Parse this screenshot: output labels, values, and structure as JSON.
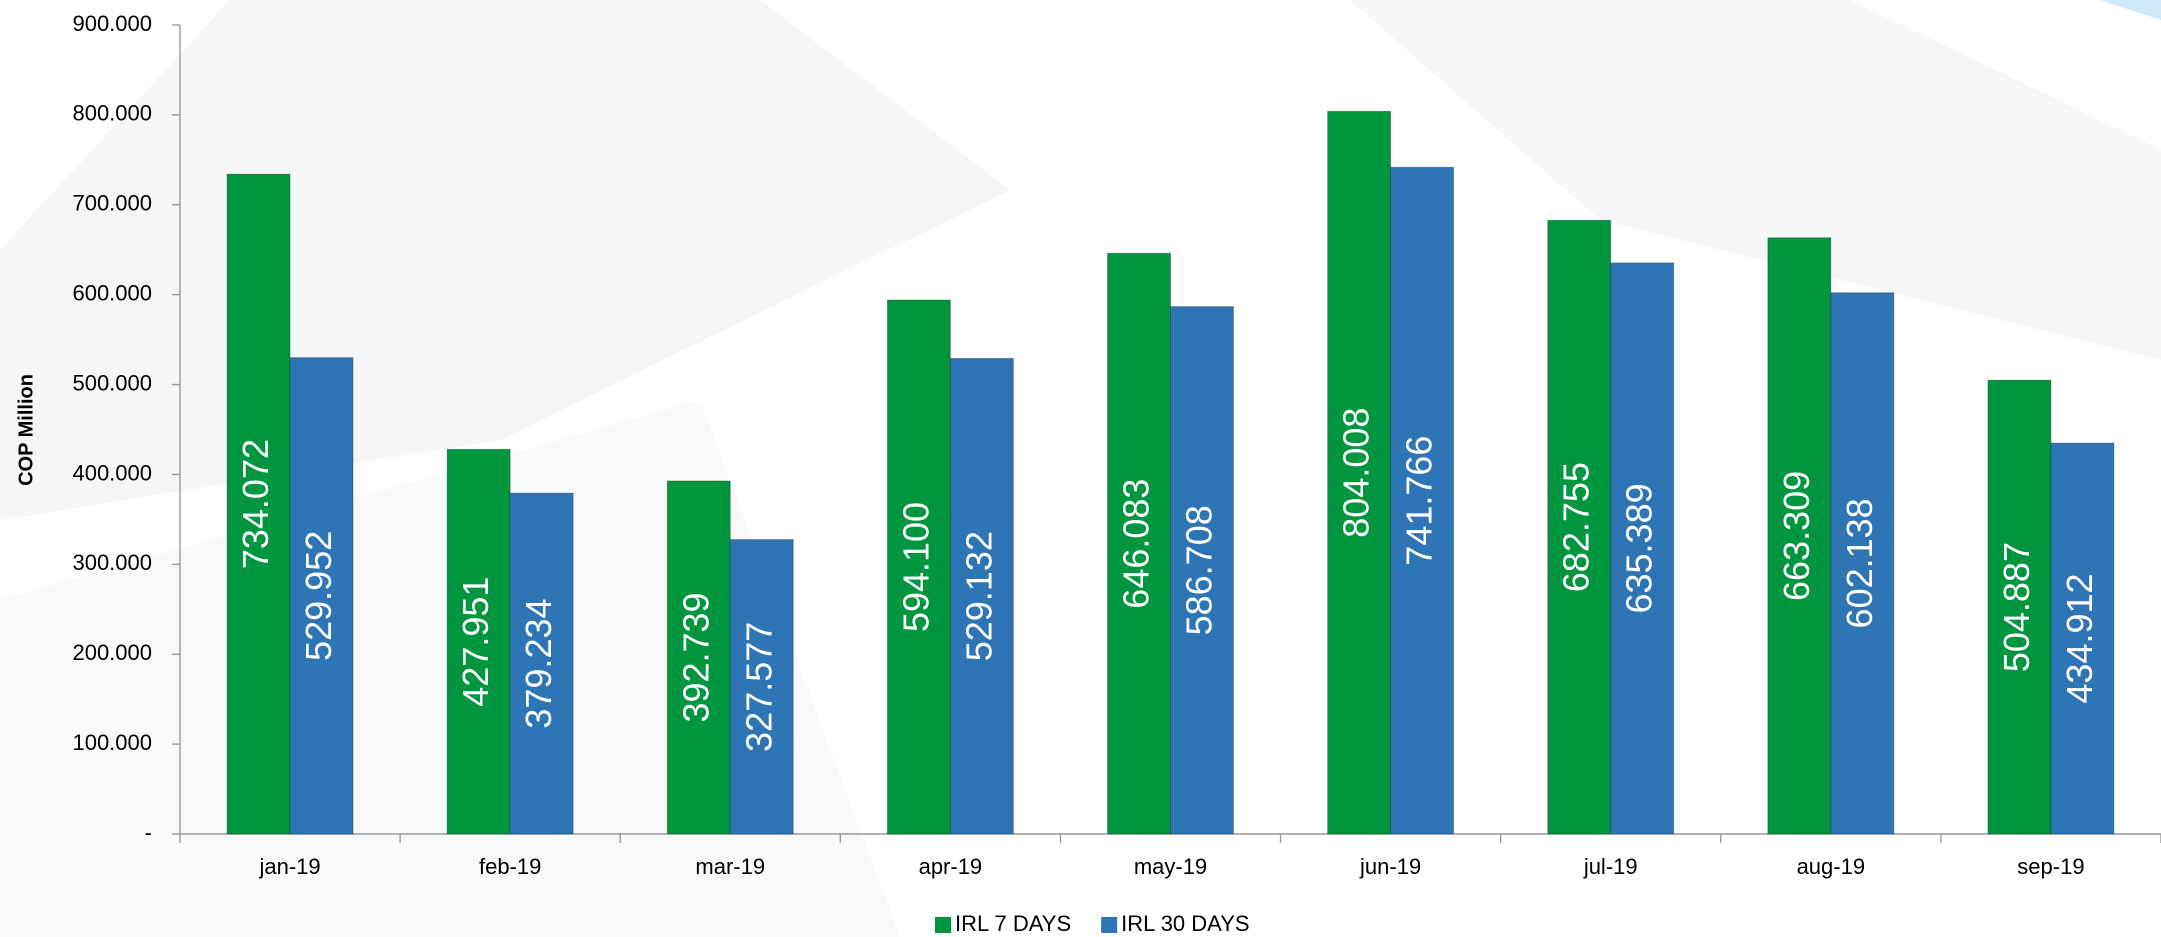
{
  "chart_data": {
    "type": "bar",
    "y_label": "COP Million",
    "categories": [
      "jan-19",
      "feb-19",
      "mar-19",
      "apr-19",
      "may-19",
      "jun-19",
      "jul-19",
      "aug-19",
      "sep-19"
    ],
    "series": [
      {
        "name": "IRL 7 DAYS",
        "color": "#00953f",
        "values": [
          734072,
          427951,
          392739,
          594100,
          646083,
          804008,
          682755,
          663309,
          504887
        ],
        "value_labels": [
          "734.072",
          "427.951",
          "392.739",
          "594.100",
          "646.083",
          "804.008",
          "682.755",
          "663.309",
          "504.887"
        ]
      },
      {
        "name": "IRL 30 DAYS",
        "color": "#2e75b6",
        "values": [
          529952,
          379234,
          327577,
          529132,
          586708,
          741766,
          635389,
          602138,
          434912
        ],
        "value_labels": [
          "529.952",
          "379.234",
          "327.577",
          "529.132",
          "586.708",
          "741.766",
          "635.389",
          "602.138",
          "434.912"
        ]
      }
    ],
    "ylim": [
      0,
      900000
    ],
    "yticks": [
      {
        "value": 0,
        "label": "-"
      },
      {
        "value": 100000,
        "label": "100.000"
      },
      {
        "value": 200000,
        "label": "200.000"
      },
      {
        "value": 300000,
        "label": "300.000"
      },
      {
        "value": 400000,
        "label": "400.000"
      },
      {
        "value": 500000,
        "label": "500.000"
      },
      {
        "value": 600000,
        "label": "600.000"
      },
      {
        "value": 700000,
        "label": "700.000"
      },
      {
        "value": 800000,
        "label": "800.000"
      },
      {
        "value": 900000,
        "label": "900.000"
      }
    ],
    "legend": "bottom"
  }
}
